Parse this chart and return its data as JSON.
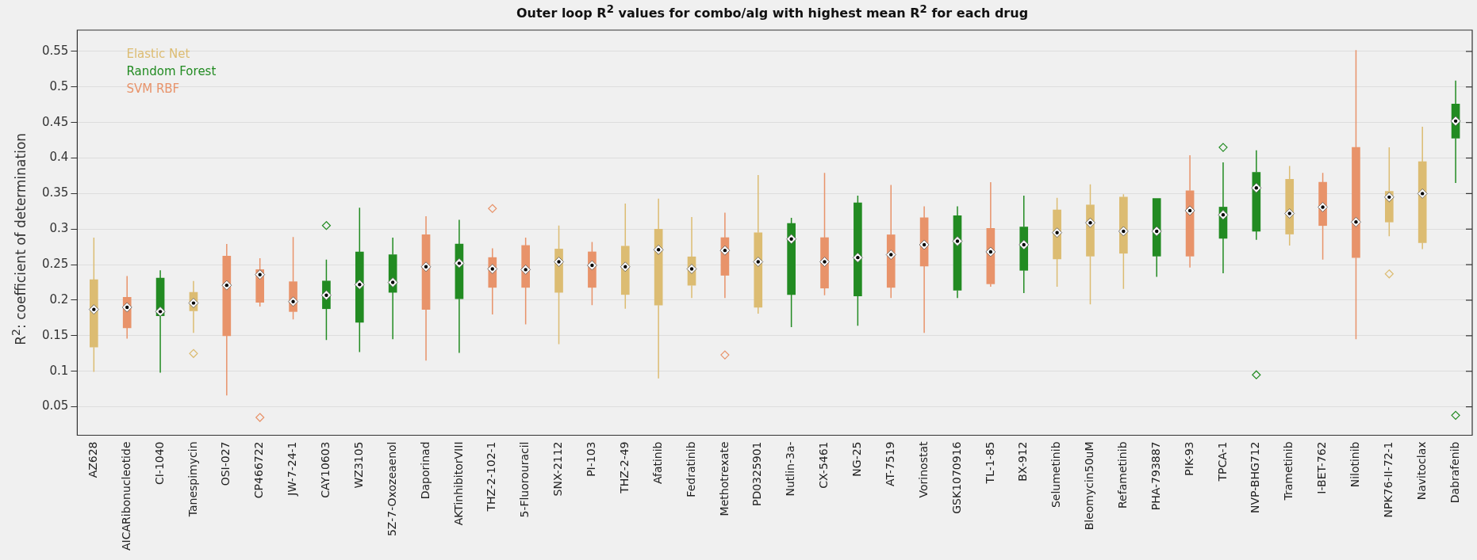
{
  "chart_data": {
    "type": "box",
    "title": "Outer loop R$^{2}$ values for combo/alg with highest mean R$^{2}$ for each drug",
    "ylabel": "R$^{2}$: coefficient of determination",
    "categories": [
      "AZ628",
      "AICARibonucleotide",
      "CI-1040",
      "Tanespimycin",
      "OSI-027",
      "CP466722",
      "JW-7-24-1",
      "CAY10603",
      "WZ3105",
      "5Z-7-Oxozeaenol",
      "Daporinad",
      "AKTinhibitorVIII",
      "THZ-2-102-1",
      "5-Fluorouracil",
      "SNX-2112",
      "PI-103",
      "THZ-2-49",
      "Afatinib",
      "Fedratinib",
      "Methotrexate",
      "PD0325901",
      "Nutlin-3a-",
      "CX-5461",
      "NG-25",
      "AT-7519",
      "Vorinostat",
      "GSK1070916",
      "TL-1-85",
      "BX-912",
      "Selumetinib",
      "Bleomycin50uM",
      "Refametinib",
      "PHA-793887",
      "PIK-93",
      "TPCA-1",
      "NVP-BHG712",
      "Trametinib",
      "I-BET-762",
      "Nilotinib",
      "NPK76-II-72-1",
      "Navitoclax",
      "Dabrafenib"
    ],
    "series": [
      {
        "name": "Elastic Net",
        "color": "#dcbc72",
        "boxes": [
          {
            "low": 0.099,
            "q1": 0.134,
            "median": 0.187,
            "q3": 0.229,
            "high": 0.288
          },
          null,
          null,
          {
            "low": 0.154,
            "q1": 0.185,
            "median": 0.196,
            "q3": 0.211,
            "high": 0.227,
            "outliers": [
              0.125
            ]
          },
          null,
          null,
          null,
          null,
          null,
          null,
          null,
          null,
          null,
          null,
          {
            "low": 0.138,
            "q1": 0.211,
            "median": 0.254,
            "q3": 0.272,
            "high": 0.305
          },
          null,
          {
            "low": 0.188,
            "q1": 0.208,
            "median": 0.247,
            "q3": 0.276,
            "high": 0.336
          },
          {
            "low": 0.09,
            "q1": 0.193,
            "median": 0.271,
            "q3": 0.3,
            "high": 0.343
          },
          {
            "low": 0.203,
            "q1": 0.221,
            "median": 0.244,
            "q3": 0.261,
            "high": 0.317
          },
          null,
          {
            "low": 0.181,
            "q1": 0.19,
            "median": 0.254,
            "q3": 0.295,
            "high": 0.376
          },
          null,
          null,
          null,
          null,
          null,
          null,
          null,
          null,
          {
            "low": 0.219,
            "q1": 0.258,
            "median": 0.295,
            "q3": 0.327,
            "high": 0.344
          },
          {
            "low": 0.194,
            "q1": 0.262,
            "median": 0.309,
            "q3": 0.334,
            "high": 0.363
          },
          {
            "low": 0.216,
            "q1": 0.266,
            "median": 0.297,
            "q3": 0.345,
            "high": 0.349
          },
          null,
          null,
          null,
          null,
          {
            "low": 0.277,
            "q1": 0.293,
            "median": 0.322,
            "q3": 0.37,
            "high": 0.389
          },
          null,
          null,
          {
            "low": 0.29,
            "q1": 0.31,
            "median": 0.345,
            "q3": 0.353,
            "high": 0.415,
            "outliers": [
              0.237
            ]
          },
          {
            "low": 0.272,
            "q1": 0.281,
            "median": 0.35,
            "q3": 0.395,
            "high": 0.444
          },
          null
        ]
      },
      {
        "name": "Random Forest",
        "color": "#228b22",
        "boxes": [
          null,
          null,
          {
            "low": 0.098,
            "q1": 0.178,
            "median": 0.184,
            "q3": 0.231,
            "high": 0.242
          },
          null,
          null,
          null,
          null,
          {
            "low": 0.144,
            "q1": 0.188,
            "median": 0.207,
            "q3": 0.227,
            "high": 0.257,
            "outliers": [
              0.305
            ]
          },
          {
            "low": 0.127,
            "q1": 0.169,
            "median": 0.222,
            "q3": 0.268,
            "high": 0.33
          },
          {
            "low": 0.145,
            "q1": 0.211,
            "median": 0.225,
            "q3": 0.264,
            "high": 0.288
          },
          null,
          {
            "low": 0.126,
            "q1": 0.202,
            "median": 0.252,
            "q3": 0.279,
            "high": 0.313
          },
          null,
          null,
          null,
          null,
          null,
          null,
          null,
          null,
          null,
          {
            "low": 0.162,
            "q1": 0.208,
            "median": 0.286,
            "q3": 0.308,
            "high": 0.316
          },
          null,
          {
            "low": 0.164,
            "q1": 0.206,
            "median": 0.26,
            "q3": 0.337,
            "high": 0.347
          },
          null,
          null,
          {
            "low": 0.203,
            "q1": 0.214,
            "median": 0.283,
            "q3": 0.319,
            "high": 0.332
          },
          null,
          {
            "low": 0.21,
            "q1": 0.242,
            "median": 0.278,
            "q3": 0.303,
            "high": 0.347
          },
          null,
          null,
          null,
          {
            "low": 0.233,
            "q1": 0.262,
            "median": 0.297,
            "q3": 0.343,
            "high": 0.343
          },
          null,
          {
            "low": 0.238,
            "q1": 0.287,
            "median": 0.32,
            "q3": 0.331,
            "high": 0.394,
            "outliers": [
              0.415
            ]
          },
          {
            "low": 0.285,
            "q1": 0.297,
            "median": 0.358,
            "q3": 0.38,
            "high": 0.411,
            "outliers": [
              0.095
            ]
          },
          null,
          null,
          null,
          null,
          null,
          {
            "low": 0.365,
            "q1": 0.428,
            "median": 0.452,
            "q3": 0.476,
            "high": 0.509,
            "outliers": [
              0.038
            ]
          }
        ]
      },
      {
        "name": "SVM RBF",
        "color": "#e8936a",
        "boxes": [
          null,
          {
            "low": 0.146,
            "q1": 0.161,
            "median": 0.19,
            "q3": 0.204,
            "high": 0.234
          },
          null,
          null,
          {
            "low": 0.066,
            "q1": 0.15,
            "median": 0.221,
            "q3": 0.262,
            "high": 0.279
          },
          {
            "low": 0.191,
            "q1": 0.197,
            "median": 0.236,
            "q3": 0.243,
            "high": 0.259,
            "outliers": [
              0.035
            ]
          },
          {
            "low": 0.173,
            "q1": 0.184,
            "median": 0.198,
            "q3": 0.226,
            "high": 0.289
          },
          null,
          null,
          null,
          {
            "low": 0.115,
            "q1": 0.187,
            "median": 0.247,
            "q3": 0.292,
            "high": 0.318
          },
          null,
          {
            "low": 0.18,
            "q1": 0.218,
            "median": 0.244,
            "q3": 0.26,
            "high": 0.273,
            "outliers": [
              0.329
            ]
          },
          {
            "low": 0.166,
            "q1": 0.218,
            "median": 0.243,
            "q3": 0.277,
            "high": 0.288
          },
          null,
          {
            "low": 0.193,
            "q1": 0.218,
            "median": 0.249,
            "q3": 0.268,
            "high": 0.282
          },
          null,
          null,
          null,
          {
            "low": 0.203,
            "q1": 0.235,
            "median": 0.27,
            "q3": 0.288,
            "high": 0.323,
            "outliers": [
              0.123
            ]
          },
          null,
          null,
          {
            "low": 0.207,
            "q1": 0.217,
            "median": 0.254,
            "q3": 0.288,
            "high": 0.379
          },
          null,
          {
            "low": 0.203,
            "q1": 0.218,
            "median": 0.264,
            "q3": 0.292,
            "high": 0.362
          },
          {
            "low": 0.154,
            "q1": 0.248,
            "median": 0.278,
            "q3": 0.316,
            "high": 0.332
          },
          null,
          {
            "low": 0.219,
            "q1": 0.223,
            "median": 0.268,
            "q3": 0.301,
            "high": 0.366
          },
          null,
          null,
          null,
          null,
          null,
          {
            "low": 0.246,
            "q1": 0.262,
            "median": 0.326,
            "q3": 0.354,
            "high": 0.404
          },
          null,
          null,
          null,
          {
            "low": 0.257,
            "q1": 0.305,
            "median": 0.331,
            "q3": 0.366,
            "high": 0.379
          },
          {
            "low": 0.145,
            "q1": 0.26,
            "median": 0.31,
            "q3": 0.415,
            "high": 0.552
          },
          null,
          null,
          null
        ]
      }
    ],
    "ylim": [
      0.01,
      0.58
    ],
    "yticks": [
      0.05,
      0.1,
      0.15,
      0.2,
      0.25,
      0.3,
      0.35,
      0.4,
      0.45,
      0.5,
      0.55
    ],
    "grid": "y",
    "legend": "top left"
  }
}
